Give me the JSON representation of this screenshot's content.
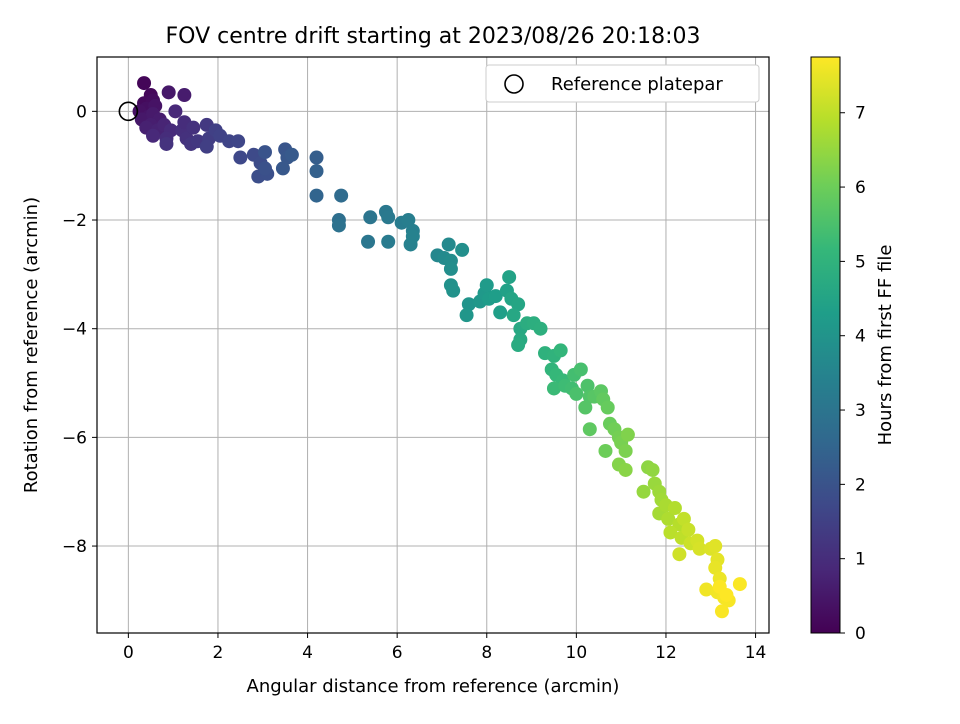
{
  "chart_data": {
    "type": "scatter",
    "title": "FOV centre drift starting at 2023/08/26 20:18:03",
    "xlabel": "Angular distance from reference (arcmin)",
    "ylabel": "Rotation from reference (arcmin)",
    "xlim": [
      -0.7,
      14.3
    ],
    "ylim": [
      -9.6,
      1.0
    ],
    "xticks": [
      0,
      2,
      4,
      6,
      8,
      10,
      12,
      14
    ],
    "yticks": [
      0,
      -2,
      -4,
      -6,
      -8
    ],
    "grid": true,
    "legend": {
      "position": "top-right",
      "entries": [
        "Reference platepar"
      ]
    },
    "reference_point": {
      "x": 0,
      "y": 0
    },
    "colorbar": {
      "label": "Hours from first FF file",
      "colormap": "viridis",
      "range": [
        0,
        7.75
      ],
      "ticks": [
        0,
        1,
        2,
        3,
        4,
        5,
        6,
        7
      ]
    },
    "colormap_stops": [
      "#440154",
      "#482878",
      "#3e4989",
      "#31688e",
      "#26828e",
      "#1f9e89",
      "#35b779",
      "#6ece58",
      "#b5de2b",
      "#fde725"
    ],
    "points_note": "each point: [x arcmin, y arcmin, hours]",
    "points": [
      [
        0.35,
        0.52,
        0.1
      ],
      [
        0.5,
        0.3,
        0.15
      ],
      [
        0.35,
        0.15,
        0.2
      ],
      [
        0.55,
        0.2,
        0.25
      ],
      [
        0.4,
        0.05,
        0.3
      ],
      [
        0.25,
        0.0,
        0.35
      ],
      [
        0.6,
        0.1,
        0.4
      ],
      [
        0.45,
        -0.1,
        0.45
      ],
      [
        0.3,
        -0.15,
        0.5
      ],
      [
        0.55,
        -0.05,
        0.55
      ],
      [
        0.7,
        -0.15,
        0.6
      ],
      [
        0.5,
        -0.25,
        0.65
      ],
      [
        0.4,
        -0.3,
        0.7
      ],
      [
        0.65,
        -0.35,
        0.75
      ],
      [
        0.8,
        -0.25,
        0.8
      ],
      [
        0.9,
        0.35,
        0.5
      ],
      [
        1.25,
        0.3,
        0.6
      ],
      [
        1.05,
        0.0,
        0.9
      ],
      [
        0.95,
        -0.35,
        0.95
      ],
      [
        0.85,
        -0.5,
        1.0
      ],
      [
        0.55,
        -0.45,
        0.9
      ],
      [
        1.2,
        -0.35,
        1.05
      ],
      [
        1.3,
        -0.5,
        1.1
      ],
      [
        1.25,
        -0.2,
        1.0
      ],
      [
        1.45,
        -0.3,
        1.1
      ],
      [
        1.4,
        -0.6,
        1.2
      ],
      [
        0.85,
        -0.6,
        1.15
      ],
      [
        1.55,
        -0.55,
        1.25
      ],
      [
        1.75,
        -0.25,
        1.3
      ],
      [
        1.8,
        -0.5,
        1.4
      ],
      [
        1.75,
        -0.65,
        1.45
      ],
      [
        1.95,
        -0.35,
        1.5
      ],
      [
        2.05,
        -0.45,
        1.55
      ],
      [
        2.25,
        -0.55,
        1.6
      ],
      [
        2.45,
        -0.55,
        1.65
      ],
      [
        2.5,
        -0.85,
        1.7
      ],
      [
        2.8,
        -0.8,
        1.75
      ],
      [
        2.95,
        -0.95,
        1.8
      ],
      [
        2.9,
        -1.2,
        1.85
      ],
      [
        3.1,
        -1.15,
        1.9
      ],
      [
        3.05,
        -1.05,
        1.95
      ],
      [
        3.05,
        -0.75,
        2.0
      ],
      [
        3.5,
        -0.7,
        2.05
      ],
      [
        3.55,
        -0.85,
        2.1
      ],
      [
        3.45,
        -1.05,
        2.15
      ],
      [
        3.65,
        -0.8,
        2.2
      ],
      [
        4.2,
        -0.85,
        2.3
      ],
      [
        4.2,
        -1.1,
        2.4
      ],
      [
        4.2,
        -1.55,
        2.5
      ],
      [
        4.75,
        -1.55,
        2.7
      ],
      [
        4.7,
        -2.0,
        2.8
      ],
      [
        4.7,
        -2.1,
        2.9
      ],
      [
        5.4,
        -1.95,
        3.0
      ],
      [
        5.35,
        -2.4,
        3.05
      ],
      [
        5.75,
        -1.85,
        3.1
      ],
      [
        5.8,
        -1.95,
        3.15
      ],
      [
        5.8,
        -2.4,
        3.2
      ],
      [
        6.1,
        -2.05,
        3.25
      ],
      [
        6.25,
        -2.0,
        3.3
      ],
      [
        6.35,
        -2.2,
        3.35
      ],
      [
        6.3,
        -2.45,
        3.4
      ],
      [
        6.35,
        -2.3,
        3.45
      ],
      [
        6.9,
        -2.65,
        3.6
      ],
      [
        7.15,
        -2.45,
        3.65
      ],
      [
        7.05,
        -2.7,
        3.7
      ],
      [
        7.2,
        -2.75,
        3.75
      ],
      [
        7.2,
        -2.9,
        3.8
      ],
      [
        7.45,
        -2.55,
        3.85
      ],
      [
        7.2,
        -3.2,
        3.9
      ],
      [
        7.25,
        -3.3,
        3.95
      ],
      [
        7.6,
        -3.55,
        4.0
      ],
      [
        7.55,
        -3.75,
        4.05
      ],
      [
        7.85,
        -3.5,
        4.1
      ],
      [
        7.95,
        -3.35,
        4.15
      ],
      [
        8.0,
        -3.2,
        4.2
      ],
      [
        8.05,
        -3.45,
        4.25
      ],
      [
        8.2,
        -3.4,
        4.3
      ],
      [
        8.3,
        -3.7,
        4.35
      ],
      [
        8.45,
        -3.3,
        4.4
      ],
      [
        8.5,
        -3.05,
        4.45
      ],
      [
        8.55,
        -3.45,
        4.5
      ],
      [
        8.7,
        -3.55,
        4.55
      ],
      [
        8.6,
        -3.75,
        4.6
      ],
      [
        8.75,
        -4.0,
        4.65
      ],
      [
        8.75,
        -4.2,
        4.7
      ],
      [
        8.7,
        -4.3,
        4.75
      ],
      [
        8.9,
        -3.9,
        4.8
      ],
      [
        9.05,
        -3.9,
        4.85
      ],
      [
        9.2,
        -4.0,
        4.9
      ],
      [
        9.3,
        -4.45,
        4.95
      ],
      [
        9.5,
        -4.5,
        5.0
      ],
      [
        9.45,
        -4.75,
        5.05
      ],
      [
        9.65,
        -4.4,
        5.1
      ],
      [
        9.55,
        -4.85,
        5.15
      ],
      [
        9.7,
        -4.95,
        5.2
      ],
      [
        9.5,
        -5.1,
        5.25
      ],
      [
        9.75,
        -5.05,
        5.3
      ],
      [
        9.9,
        -5.1,
        5.35
      ],
      [
        9.95,
        -4.85,
        5.4
      ],
      [
        10.1,
        -4.75,
        5.45
      ],
      [
        10.0,
        -5.2,
        5.5
      ],
      [
        10.25,
        -5.05,
        5.55
      ],
      [
        10.3,
        -5.25,
        5.6
      ],
      [
        10.2,
        -5.45,
        5.65
      ],
      [
        10.4,
        -5.25,
        5.7
      ],
      [
        10.55,
        -5.15,
        5.75
      ],
      [
        10.3,
        -5.85,
        5.8
      ],
      [
        10.6,
        -5.3,
        5.85
      ],
      [
        10.7,
        -5.45,
        5.9
      ],
      [
        10.75,
        -5.75,
        5.95
      ],
      [
        10.65,
        -6.25,
        6.0
      ],
      [
        10.85,
        -5.85,
        6.05
      ],
      [
        10.95,
        -6.0,
        6.1
      ],
      [
        11.0,
        -6.1,
        6.15
      ],
      [
        11.1,
        -6.25,
        6.2
      ],
      [
        11.15,
        -5.95,
        6.25
      ],
      [
        10.95,
        -6.5,
        6.3
      ],
      [
        11.1,
        -6.6,
        6.35
      ],
      [
        11.6,
        -6.55,
        6.4
      ],
      [
        11.7,
        -6.6,
        6.45
      ],
      [
        11.5,
        -7.0,
        6.5
      ],
      [
        11.75,
        -6.85,
        6.55
      ],
      [
        11.85,
        -7.0,
        6.6
      ],
      [
        11.9,
        -7.15,
        6.65
      ],
      [
        11.85,
        -7.4,
        6.7
      ],
      [
        12.0,
        -7.25,
        6.75
      ],
      [
        12.05,
        -7.5,
        6.8
      ],
      [
        12.2,
        -7.3,
        6.85
      ],
      [
        12.3,
        -7.6,
        6.9
      ],
      [
        12.1,
        -7.75,
        6.95
      ],
      [
        12.35,
        -7.85,
        7.0
      ],
      [
        12.4,
        -7.5,
        7.05
      ],
      [
        12.5,
        -7.7,
        7.1
      ],
      [
        12.55,
        -7.95,
        7.15
      ],
      [
        12.3,
        -8.15,
        7.2
      ],
      [
        12.7,
        -7.9,
        7.25
      ],
      [
        12.75,
        -8.05,
        7.3
      ],
      [
        13.0,
        -8.05,
        7.35
      ],
      [
        13.1,
        -8.0,
        7.4
      ],
      [
        13.15,
        -8.25,
        7.45
      ],
      [
        13.1,
        -8.4,
        7.5
      ],
      [
        13.2,
        -8.6,
        7.55
      ],
      [
        12.9,
        -8.8,
        7.6
      ],
      [
        13.15,
        -8.85,
        7.62
      ],
      [
        13.3,
        -8.95,
        7.65
      ],
      [
        13.4,
        -9.0,
        7.68
      ],
      [
        13.25,
        -9.2,
        7.7
      ],
      [
        13.65,
        -8.7,
        7.72
      ],
      [
        13.2,
        -8.75,
        7.74
      ],
      [
        13.35,
        -8.9,
        7.75
      ]
    ]
  }
}
